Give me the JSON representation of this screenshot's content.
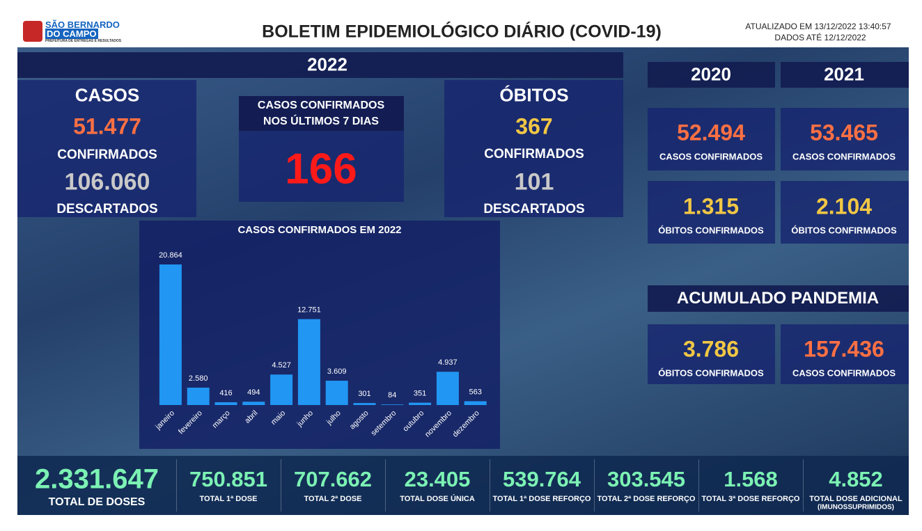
{
  "header": {
    "logo_line1": "SÃO BERNARDO",
    "logo_line2": "DO CAMPO",
    "logo_tagline": "PREFEITURA DE ENTREGAS E RESULTADOS",
    "title": "BOLETIM EPIDEMIOLÓGICO DIÁRIO (COVID-19)",
    "updated": "ATUALIZADO EM 13/12/2022 13:40:57",
    "data_until": "DADOS ATÉ 12/12/2022"
  },
  "year_2022": {
    "label": "2022",
    "cases": {
      "title": "CASOS",
      "confirmed": "51.477",
      "confirmed_label": "CONFIRMADOS",
      "discarded": "106.060",
      "discarded_label": "DESCARTADOS"
    },
    "last7": {
      "title_line1": "CASOS CONFIRMADOS",
      "title_line2": "NOS ÚLTIMOS 7 DIAS",
      "value": "166"
    },
    "deaths": {
      "title": "ÓBITOS",
      "confirmed": "367",
      "confirmed_label": "CONFIRMADOS",
      "discarded": "101",
      "discarded_label": "DESCARTADOS"
    }
  },
  "year_2020": {
    "label": "2020",
    "cases": "52.494",
    "cases_label": "CASOS CONFIRMADOS",
    "deaths": "1.315",
    "deaths_label": "ÓBITOS CONFIRMADOS"
  },
  "year_2021": {
    "label": "2021",
    "cases": "53.465",
    "cases_label": "CASOS CONFIRMADOS",
    "deaths": "2.104",
    "deaths_label": "ÓBITOS CONFIRMADOS"
  },
  "pandemic": {
    "title": "ACUMULADO PANDEMIA",
    "deaths": "3.786",
    "deaths_label": "ÓBITOS CONFIRMADOS",
    "cases": "157.436",
    "cases_label": "CASOS CONFIRMADOS"
  },
  "vaccination": [
    {
      "value": "2.331.647",
      "label": "TOTAL DE DOSES"
    },
    {
      "value": "750.851",
      "label": "TOTAL 1ª DOSE"
    },
    {
      "value": "707.662",
      "label": "TOTAL 2ª DOSE"
    },
    {
      "value": "23.405",
      "label": "TOTAL DOSE ÚNICA"
    },
    {
      "value": "539.764",
      "label": "TOTAL 1ª DOSE REFORÇO"
    },
    {
      "value": "303.545",
      "label": "TOTAL 2ª DOSE REFORÇO"
    },
    {
      "value": "1.568",
      "label": "TOTAL 3ª DOSE REFORÇO"
    },
    {
      "value": "4.852",
      "label": "TOTAL DOSE ADICIONAL",
      "note": "(IMUNOSSUPRIMIDOS)"
    }
  ],
  "chart_data": {
    "type": "bar",
    "title": "CASOS CONFIRMADOS EM 2022",
    "categories": [
      "janeiro",
      "fevereiro",
      "março",
      "abril",
      "maio",
      "junho",
      "julho",
      "agosto",
      "setembro",
      "outubro",
      "novembro",
      "dezembro"
    ],
    "values": [
      20864,
      2580,
      416,
      494,
      4527,
      12751,
      3609,
      301,
      84,
      351,
      4937,
      563
    ],
    "value_labels": [
      "20.864",
      "2.580",
      "416",
      "494",
      "4.527",
      "12.751",
      "3.609",
      "301",
      "84",
      "351",
      "4.937",
      "563"
    ],
    "color": "#2196f3"
  }
}
